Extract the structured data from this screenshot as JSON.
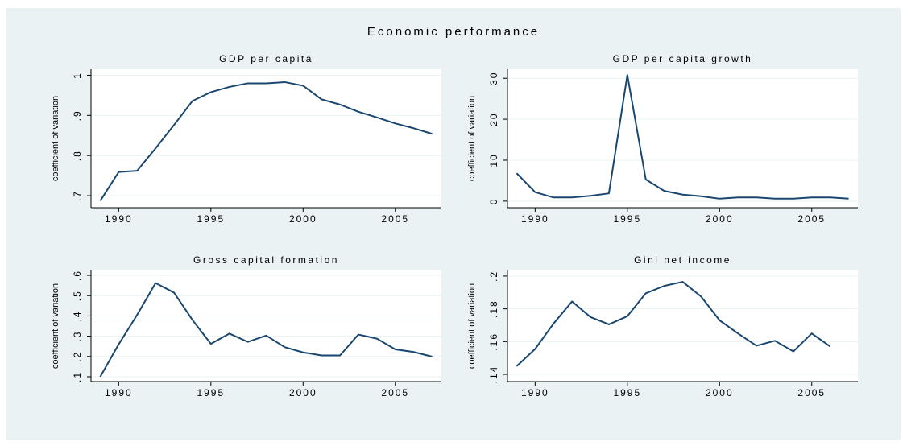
{
  "title": "Economic performance",
  "chart_data": [
    {
      "type": "line",
      "title": "GDP per capita",
      "ylabel": "coefficient of variation",
      "color": "#1a476f",
      "grid": true,
      "x": [
        1989,
        1990,
        1991,
        1992,
        1993,
        1994,
        1995,
        1996,
        1997,
        1998,
        1999,
        2000,
        2001,
        2002,
        2003,
        2004,
        2005,
        2006,
        2007
      ],
      "values": [
        0.687,
        0.759,
        0.762,
        0.818,
        0.876,
        0.936,
        0.958,
        0.971,
        0.98,
        0.98,
        0.983,
        0.974,
        0.94,
        0.927,
        0.909,
        0.895,
        0.88,
        0.868,
        0.854
      ],
      "xlim": [
        1988.5,
        2007.5
      ],
      "xticks": [
        1990,
        1995,
        2000,
        2005
      ],
      "ylim": [
        0.67,
        1.015
      ],
      "yticks": [
        {
          "value": 0.7,
          "label": ".7"
        },
        {
          "value": 0.8,
          "label": ".8"
        },
        {
          "value": 0.9,
          "label": ".9"
        },
        1
      ]
    },
    {
      "type": "line",
      "title": "GDP per capita growth",
      "ylabel": "coefficient of variation",
      "color": "#1a476f",
      "grid": true,
      "x": [
        1989,
        1990,
        1991,
        1992,
        1993,
        1994,
        1995,
        1996,
        1997,
        1998,
        1999,
        2000,
        2001,
        2002,
        2003,
        2004,
        2005,
        2006,
        2007
      ],
      "values": [
        6.8,
        2.2,
        0.9,
        0.9,
        1.3,
        1.9,
        30.8,
        5.3,
        2.5,
        1.6,
        1.2,
        0.6,
        0.9,
        0.9,
        0.6,
        0.6,
        0.9,
        0.9,
        0.6
      ],
      "xlim": [
        1988.5,
        2007.5
      ],
      "xticks": [
        1990,
        1995,
        2000,
        2005
      ],
      "ylim": [
        -1.6,
        32.2
      ],
      "yticks": [
        0,
        10,
        20,
        30
      ]
    },
    {
      "type": "line",
      "title": "Gross capital formation",
      "ylabel": "coefficient of variation",
      "color": "#1a476f",
      "grid": true,
      "x": [
        1989,
        1990,
        1991,
        1992,
        1993,
        1994,
        1995,
        1996,
        1997,
        1998,
        1999,
        2000,
        2001,
        2002,
        2003,
        2004,
        2005,
        2006,
        2007
      ],
      "values": [
        0.1,
        0.26,
        0.405,
        0.562,
        0.515,
        0.38,
        0.262,
        0.313,
        0.272,
        0.303,
        0.246,
        0.22,
        0.205,
        0.205,
        0.308,
        0.288,
        0.235,
        0.222,
        0.199
      ],
      "xlim": [
        1988.5,
        2007.5
      ],
      "xticks": [
        1990,
        1995,
        2000,
        2005
      ],
      "ylim": [
        0.076,
        0.624
      ],
      "yticks": [
        {
          "value": 0.1,
          "label": ".1"
        },
        {
          "value": 0.2,
          "label": ".2"
        },
        {
          "value": 0.3,
          "label": ".3"
        },
        {
          "value": 0.4,
          "label": ".4"
        },
        {
          "value": 0.5,
          "label": ".5"
        },
        {
          "value": 0.6,
          "label": ".6"
        }
      ]
    },
    {
      "type": "line",
      "title": "Gini net income",
      "ylabel": "coefficient of variation",
      "color": "#1a476f",
      "grid": true,
      "x": [
        1989,
        1990,
        1991,
        1992,
        1993,
        1994,
        1995,
        1996,
        1997,
        1998,
        1999,
        2000,
        2001,
        2002,
        2003,
        2004,
        2005,
        2006,
        2007
      ],
      "values": [
        0.145,
        0.1555,
        0.171,
        0.1845,
        0.175,
        0.1705,
        0.1755,
        0.1895,
        0.194,
        0.1965,
        0.1875,
        0.173,
        0.165,
        0.1575,
        0.1605,
        0.154,
        0.165,
        0.157,
        null
      ],
      "xlim": [
        1988.5,
        2007.5
      ],
      "xticks": [
        1990,
        1995,
        2000,
        2005
      ],
      "ylim": [
        0.1356,
        0.2034
      ],
      "yticks": [
        {
          "value": 0.14,
          "label": ".14"
        },
        {
          "value": 0.16,
          "label": ".16"
        },
        {
          "value": 0.18,
          "label": ".18"
        },
        {
          "value": 0.2,
          "label": ".2"
        }
      ]
    }
  ]
}
